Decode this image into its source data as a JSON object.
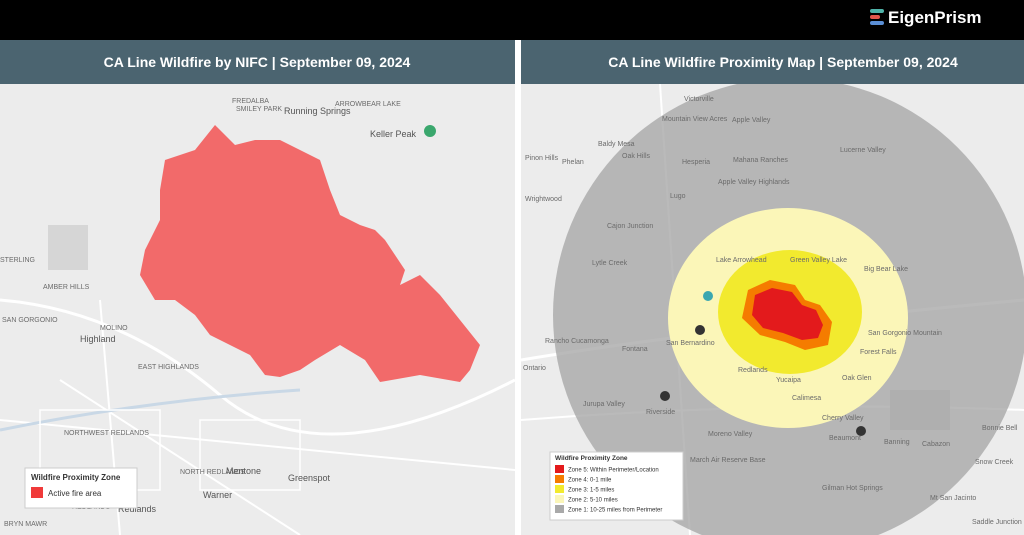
{
  "header": {
    "brand": "EigenPrism"
  },
  "panels": [
    {
      "title": "CA Line Wildfire by NIFC | September 09, 2024",
      "places": [
        "Running Springs",
        "ARROWBEAR LAKE",
        "FREDALBA",
        "SMILEY PARK",
        "Keller Peak",
        "STERLING",
        "AMBER HILLS",
        "SAN GORGONIO",
        "MOLINO",
        "Highland",
        "EAST HIGHLANDS",
        "NORTHWEST REDLANDS",
        "NORTH REDLANDS",
        "Mentone",
        "Greenspot",
        "Warner",
        "REDLANDS",
        "Redlands",
        "BRYN MAWR"
      ],
      "legend": {
        "title": "Wildfire Proximity Zone",
        "items": [
          {
            "label": "Active fire area",
            "color": "#f03a3a"
          }
        ]
      }
    },
    {
      "title": "CA Line Wildfire Proximity Map | September 09, 2024",
      "places": [
        "Victorville",
        "Mountain View Acres",
        "Apple Valley",
        "Lucerne Valley",
        "Baldy Mesa",
        "Oak Hills",
        "Hesperia",
        "Mahana Ranches",
        "Phelan",
        "Pinon Hills",
        "Apple Valley Highlands",
        "Lugo",
        "Wrightwood",
        "Cajon Junction",
        "Lytle Creek",
        "Lake Arrowhead",
        "Green Valley Lake",
        "Big Bear Lake",
        "San Bernardino",
        "Fontana",
        "Rancho Cucamonga",
        "Ontario",
        "Redlands",
        "Yucaipa",
        "Riverside",
        "Jurupa Valley",
        "Calimesa",
        "Cherry Valley",
        "Beaumont",
        "Banning",
        "Cabazon",
        "San Gorgonio Mountain",
        "Forest Falls",
        "Oak Glen",
        "Moreno Valley",
        "March Air Reserve Base",
        "Mt San Jacinto",
        "Snow Creek",
        "Bonnie Bell",
        "Saddle Junction",
        "Gilman Hot Springs"
      ],
      "legend": {
        "title": "Wildfire Proximity Zone",
        "items": [
          {
            "label": "Zone 5: Within Perimeter/Location",
            "color": "#e31a1c"
          },
          {
            "label": "Zone 4: 0-1 mile",
            "color": "#f57c00"
          },
          {
            "label": "Zone 3: 1-5 miles",
            "color": "#f2ea2e"
          },
          {
            "label": "Zone 2: 5-10 miles",
            "color": "#fbf6b8"
          },
          {
            "label": "Zone 1: 10-25 miles from Perimeter",
            "color": "#a9a9a9"
          }
        ]
      }
    }
  ]
}
